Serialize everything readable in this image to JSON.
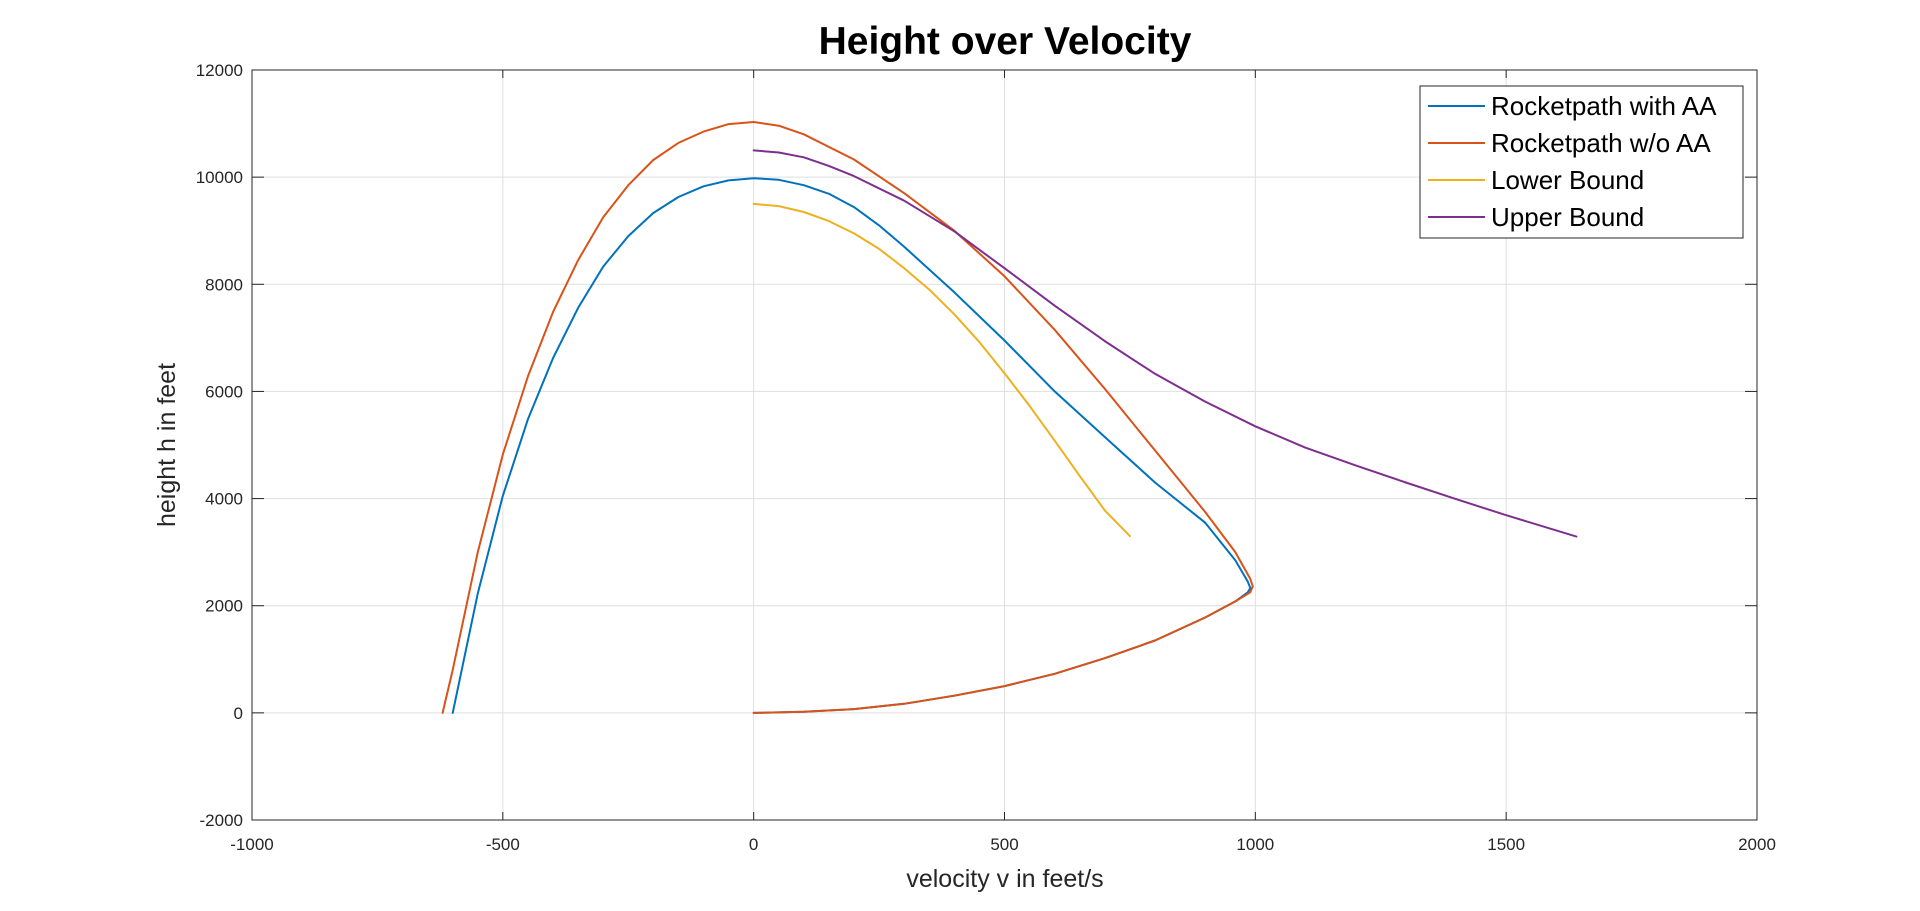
{
  "chart_data": {
    "type": "line",
    "title": "Height over Velocity",
    "xlabel": "velocity v in feet/s",
    "ylabel": "height h in feet",
    "xlim": [
      -1000,
      2000
    ],
    "ylim": [
      -2000,
      12000
    ],
    "xticks": [
      -1000,
      -500,
      0,
      500,
      1000,
      1500,
      2000
    ],
    "yticks": [
      -2000,
      0,
      2000,
      4000,
      6000,
      8000,
      10000,
      12000
    ],
    "xtick_labels": [
      "-1000",
      "-500",
      "0",
      "500",
      "1000",
      "1500",
      "2000"
    ],
    "ytick_labels": [
      "-2000",
      "0",
      "2000",
      "4000",
      "6000",
      "8000",
      "10000",
      "12000"
    ],
    "grid": true,
    "legend_position": "top-right",
    "series": [
      {
        "name": "Rocketpath with AA",
        "color": "#0072BD",
        "x": [
          0,
          100,
          200,
          300,
          400,
          500,
          600,
          700,
          800,
          900,
          960,
          985,
          990,
          985,
          960,
          900,
          800,
          700,
          600,
          500,
          400,
          300,
          250,
          200,
          150,
          100,
          50,
          0,
          -50,
          -100,
          -150,
          -200,
          -250,
          -300,
          -350,
          -400,
          -450,
          -500,
          -550,
          -600
        ],
        "y": [
          0,
          20,
          70,
          170,
          320,
          500,
          730,
          1020,
          1350,
          1780,
          2080,
          2250,
          2330,
          2450,
          2850,
          3550,
          4300,
          5150,
          6000,
          6950,
          7850,
          8700,
          9100,
          9440,
          9690,
          9850,
          9950,
          9980,
          9940,
          9830,
          9630,
          9330,
          8900,
          8330,
          7560,
          6620,
          5480,
          4050,
          2230,
          0
        ]
      },
      {
        "name": "Rocketpath w/o AA",
        "color": "#D95319",
        "x": [
          0,
          100,
          200,
          300,
          400,
          500,
          600,
          700,
          800,
          900,
          960,
          990,
          995,
          990,
          960,
          900,
          800,
          700,
          600,
          500,
          400,
          300,
          200,
          100,
          50,
          0,
          -50,
          -100,
          -150,
          -200,
          -250,
          -300,
          -350,
          -400,
          -450,
          -500,
          -550,
          -600,
          -620
        ],
        "y": [
          0,
          20,
          70,
          170,
          320,
          500,
          730,
          1020,
          1350,
          1780,
          2080,
          2250,
          2360,
          2500,
          3000,
          3750,
          4900,
          6050,
          7150,
          8150,
          9000,
          9700,
          10330,
          10800,
          10960,
          11030,
          10990,
          10850,
          10640,
          10320,
          9850,
          9250,
          8450,
          7480,
          6280,
          4820,
          3000,
          800,
          0
        ]
      },
      {
        "name": "Lower Bound",
        "color": "#EDB120",
        "x": [
          0,
          50,
          100,
          150,
          200,
          250,
          300,
          350,
          400,
          450,
          500,
          550,
          600,
          650,
          700,
          750
        ],
        "y": [
          9500,
          9460,
          9350,
          9180,
          8950,
          8660,
          8300,
          7900,
          7440,
          6920,
          6340,
          5730,
          5080,
          4420,
          3780,
          3300
        ]
      },
      {
        "name": "Upper Bound",
        "color": "#7E2F8E",
        "x": [
          0,
          50,
          100,
          150,
          200,
          300,
          400,
          500,
          600,
          700,
          800,
          900,
          1000,
          1100,
          1200,
          1300,
          1400,
          1500,
          1640
        ],
        "y": [
          10500,
          10460,
          10370,
          10210,
          10020,
          9560,
          8990,
          8300,
          7600,
          6940,
          6330,
          5810,
          5350,
          4950,
          4620,
          4300,
          3990,
          3690,
          3290
        ]
      }
    ]
  }
}
